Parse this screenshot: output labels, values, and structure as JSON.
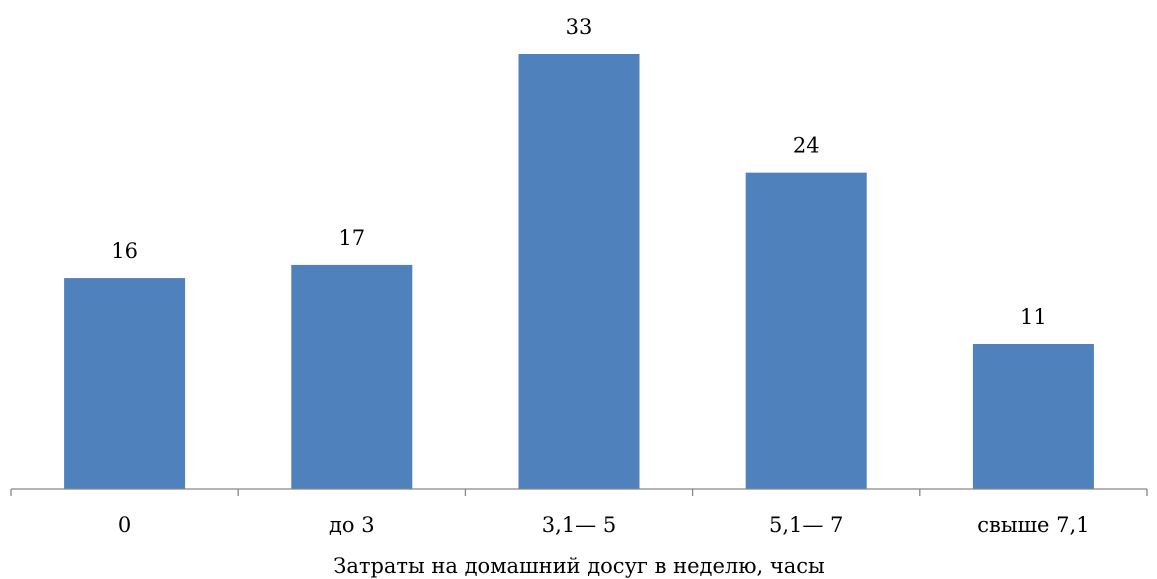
{
  "chart_data": {
    "type": "bar",
    "categories": [
      "0",
      "до 3",
      "3,1— 5",
      "5,1— 7",
      "свыше 7,1"
    ],
    "values": [
      16,
      17,
      33,
      24,
      11
    ],
    "data_labels": [
      "16",
      "17",
      "33",
      "24",
      "11"
    ],
    "title": "",
    "xlabel": "Затраты на домашний досуг в неделю, часы",
    "ylabel": "",
    "ylim": [
      0,
      35
    ],
    "grid": false,
    "legend": "none",
    "colors": {
      "bar": "#4F81BD",
      "axis": "#868686",
      "text": "#000000"
    }
  }
}
